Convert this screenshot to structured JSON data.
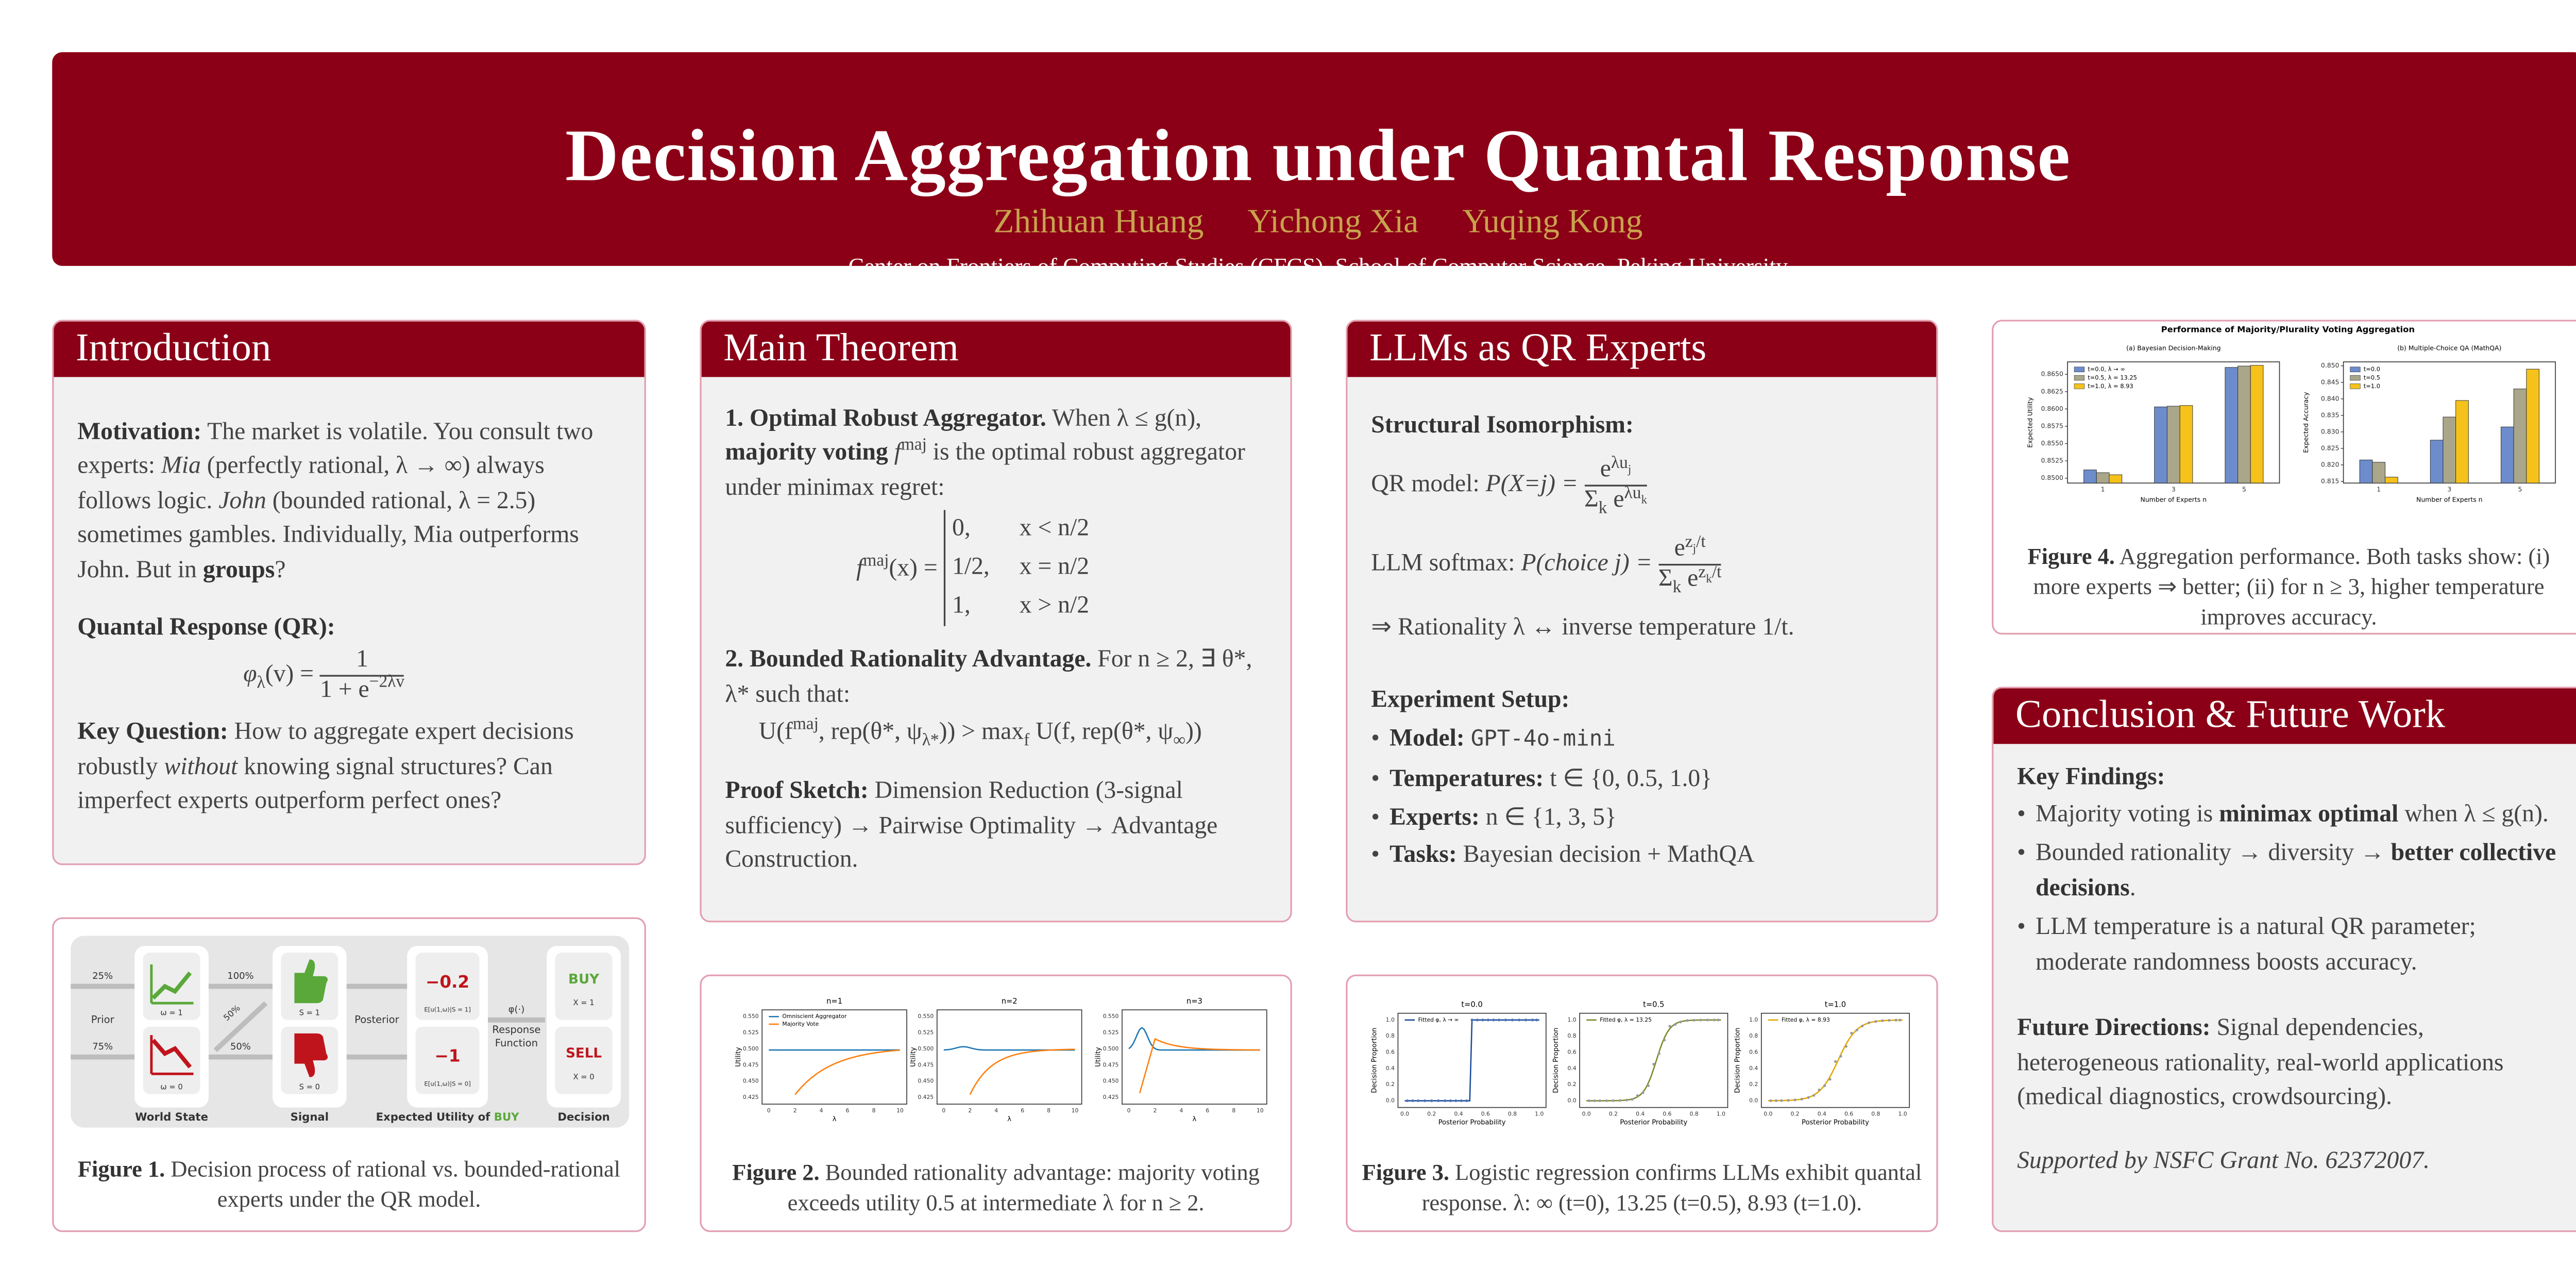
{
  "header": {
    "title": "Decision Aggregation under Quantal Response",
    "authors": [
      "Zhihuan Huang",
      "Yichong Xia",
      "Yuqing Kong"
    ],
    "affiliation": "Center on Frontiers of Computing Studies (CFCS), School of Computer Science, Peking University"
  },
  "introduction": {
    "heading": "Introduction",
    "motivation": [
      "Motivation:",
      " The market is volatile. You consult two experts: ",
      "Mia",
      " (perfectly rational, λ → ∞) always follows logic. ",
      "John",
      " (bounded rational, λ = 2.5) sometimes gambles. Individually, Mia outperforms John. But in ",
      "groups",
      "?"
    ],
    "qr": [
      "Quantal Response (QR):",
      "φ",
      "λ",
      "(v) = ",
      "1",
      "1 + e",
      "−2λv"
    ],
    "key_question": [
      "Key Question:",
      " How to aggregate expert decisions robustly ",
      "without",
      " knowing signal structures? Can imperfect experts outperform perfect ones?"
    ]
  },
  "figure1": {
    "diagram": {
      "prior_high": "25%",
      "prior": "Prior",
      "prior_low": "75%",
      "state_good": "ω = 1",
      "state_bad": "ω = 0",
      "p_full": "100%",
      "p_cross": "50%",
      "p_half": "50%",
      "signal_good": "S = 1",
      "signal_bad": "S = 0",
      "posterior": "Posterior",
      "eu_good": "−0.2",
      "eu_good_label": "E[u(1,ω)|S = 1]",
      "eu_bad": "−1",
      "eu_bad_label": "E[u(1,ω)|S = 0]",
      "phi": "φ(·)",
      "response": "Response",
      "function": "Function",
      "buy": "BUY",
      "buy_x": "X = 1",
      "sell": "SELL",
      "sell_x": "X = 0",
      "col_state": "World State",
      "col_signal": "Signal",
      "col_eu": "Expected Utility of ",
      "col_eu_buy": "BUY",
      "col_decision": "Decision"
    },
    "caption": [
      "Figure 1.",
      "Decision process of rational vs. bounded-rational experts under the QR model."
    ]
  },
  "main_theorem": {
    "heading": "Main Theorem",
    "theorem1": [
      "1. Optimal Robust Aggregator.",
      " When λ ≤ g(n), ",
      "majority voting",
      " f",
      "maj",
      " is the optimal robust aggregator under minimax regret:"
    ],
    "cases_lhs": [
      "f",
      "maj",
      "(x) ="
    ],
    "cases": [
      [
        "0,",
        "x < n/2"
      ],
      [
        "1/2,",
        "x = n/2"
      ],
      [
        "1,",
        "x > n/2"
      ]
    ],
    "theorem2": [
      "2. Bounded Rationality Advantage.",
      " For n ≥ 2, ∃ θ*, λ* such that:"
    ],
    "inequality": [
      "U(f",
      "maj",
      ", rep(θ*, ψ",
      "λ*",
      "))  >  max",
      "f",
      " U(f, rep(θ*, ψ",
      "∞",
      "))"
    ],
    "proof": [
      "Proof Sketch:",
      " Dimension Reduction (3-signal sufficiency) → Pairwise Optimality → Advantage Construction."
    ]
  },
  "llms": {
    "heading": "LLMs as QR Experts",
    "isomorphism": "Structural Isomorphism:",
    "qr_model": [
      "QR model: ",
      "P(X=j) = ",
      "e",
      "λu",
      "j",
      "Σ",
      "k",
      " e",
      "λu",
      "k"
    ],
    "llm_softmax": [
      "LLM softmax: ",
      "P(choice j) = ",
      "e",
      "z",
      "j",
      "/t",
      "Σ",
      "k",
      " e",
      "z",
      "k",
      "/t"
    ],
    "rationality": "⇒ Rationality λ ↔ inverse temperature 1/t.",
    "setup": "Experiment Setup:",
    "items": [
      [
        "Model:",
        "GPT-4o-mini"
      ],
      [
        "Temperatures:",
        " t ∈ {0, 0.5, 1.0}"
      ],
      [
        "Experts:",
        " n ∈ {1, 3, 5}"
      ],
      [
        "Tasks:",
        " Bayesian decision + MathQA"
      ]
    ]
  },
  "figure2": {
    "panels": [
      "n=1",
      "n=2",
      "n=3"
    ],
    "legend": [
      "Omniscient Aggregator",
      "Majority Vote"
    ],
    "xlabel": "λ",
    "ylabel": "Utility",
    "xticks": [
      "0",
      "2",
      "4",
      "6",
      "8",
      "10"
    ],
    "yticks": [
      "0.425",
      "0.450",
      "0.475",
      "0.500",
      "0.525",
      "0.550"
    ],
    "caption": [
      "Figure 2.",
      "Bounded rationality advantage: majority voting exceeds utility 0.5 at intermediate λ for n ≥ 2."
    ]
  },
  "figure3": {
    "panels": [
      "t=0.0",
      "t=0.5",
      "t=1.0"
    ],
    "legend": [
      "Fitted φ, λ → ∞",
      "Fitted φ, λ = 13.25",
      "Fitted φ, λ = 8.93"
    ],
    "xlabel": "Posterior Probability",
    "ylabel": "Decision Proportion",
    "xticks": [
      "0.0",
      "0.2",
      "0.4",
      "0.6",
      "0.8",
      "1.0"
    ],
    "yticks": [
      "0.0",
      "0.2",
      "0.4",
      "0.6",
      "0.8",
      "1.0"
    ],
    "caption": [
      "Figure 3.",
      "Logistic regression confirms LLMs exhibit quantal response. λ: ∞ (t=0), 13.25 (t=0.5), 8.93 (t=1.0)."
    ]
  },
  "figure4": {
    "title": "Performance of Majority/Plurality Voting Aggregation",
    "panels": [
      {
        "subtitle": "(a) Bayesian Decision-Making",
        "ylabel": "Expected Utility",
        "xlabel": "Number of Experts n",
        "categories": [
          "1",
          "3",
          "5"
        ],
        "ylim": [
          0.8493,
          0.8668
        ],
        "yticks": [
          {
            "value": 0.85,
            "label": "0.8500"
          },
          0.8525,
          {
            "value": 0.855,
            "label": "0.8550"
          },
          0.8575,
          {
            "value": 0.86,
            "label": "0.8600"
          },
          0.8625,
          {
            "value": 0.865,
            "label": "0.8650"
          }
        ],
        "series": [
          {
            "name": "t=0.0, λ → ∞",
            "color": "#6c8ccc",
            "values": [
              0.8512,
              0.8603,
              0.866
            ]
          },
          {
            "name": "t=0.5, λ = 13.25",
            "color": "#aaa68a",
            "values": [
              0.8508,
              0.8604,
              0.8662
            ]
          },
          {
            "name": "t=1.0, λ = 8.93",
            "color": "#f5c21b",
            "values": [
              0.8505,
              0.8605,
              0.8663
            ]
          }
        ]
      },
      {
        "subtitle": "(b) Multiple-Choice QA (MathQA)",
        "ylabel": "Expected Accuracy",
        "xlabel": "Number of Experts n",
        "categories": [
          "1",
          "3",
          "5"
        ],
        "ylim": [
          0.8145,
          0.8512
        ],
        "yticks": [
          0.815,
          {
            "value": 0.82,
            "label": "0.820"
          },
          0.825,
          {
            "value": 0.83,
            "label": "0.830"
          },
          0.835,
          {
            "value": 0.84,
            "label": "0.840"
          },
          0.845,
          {
            "value": 0.85,
            "label": "0.850"
          }
        ],
        "series": [
          {
            "name": "t=0.0",
            "color": "#6c8ccc",
            "values": [
              0.8215,
              0.8275,
              0.8315
            ]
          },
          {
            "name": "t=0.5",
            "color": "#aaa68a",
            "values": [
              0.8208,
              0.8345,
              0.843
            ]
          },
          {
            "name": "t=1.0",
            "color": "#f5c21b",
            "values": [
              0.8163,
              0.8395,
              0.849
            ]
          }
        ]
      }
    ],
    "caption": [
      "Figure 4.",
      "Aggregation performance. Both tasks show: (i) more experts ⇒ better; (ii) for n ≥ 3, higher temperature improves accuracy."
    ]
  },
  "conclusion": {
    "heading": "Conclusion & Future Work",
    "key_findings": "Key Findings:",
    "findings": [
      [
        "Majority voting is ",
        "minimax optimal",
        " when λ ≤ g(n)."
      ],
      [
        "Bounded rationality → diversity → ",
        "better collective decisions",
        "."
      ],
      [
        "LLM temperature is a natural QR parameter; moderate randomness boosts accuracy."
      ]
    ],
    "future": [
      "Future Directions:",
      " Signal dependencies, heterogeneous rationality, real-world applications (medical diagnostics, crowdsourcing)."
    ],
    "support": "Supported by NSFC Grant No. 62372007."
  }
}
